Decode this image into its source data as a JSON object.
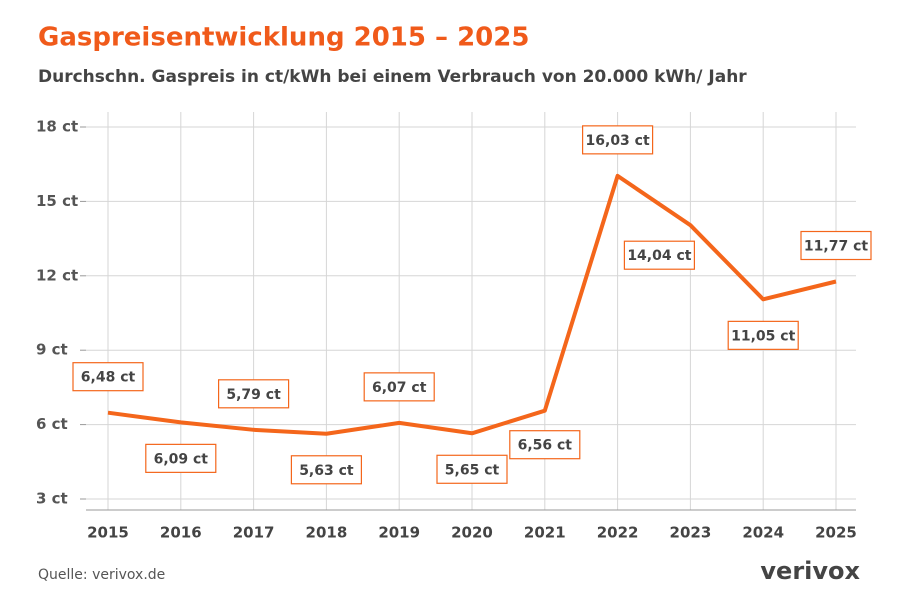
{
  "chart_data": {
    "type": "line",
    "title": "Gaspreisentwicklung 2015 – 2025",
    "subtitle": "Durchschn. Gaspreis in ct/kWh bei einem Verbrauch von 20.000 kWh/ Jahr",
    "categories": [
      "2015",
      "2016",
      "2017",
      "2018",
      "2019",
      "2020",
      "2021",
      "2022",
      "2023",
      "2024",
      "2025"
    ],
    "series": [
      {
        "name": "Gaspreis",
        "color": "#f4661b",
        "values": [
          6.48,
          6.09,
          5.79,
          5.63,
          6.07,
          5.65,
          6.56,
          16.03,
          14.04,
          11.05,
          11.77
        ],
        "value_labels": [
          "6,48 ct",
          "6,09 ct",
          "5,79 ct",
          "5,63 ct",
          "6,07 ct",
          "5,65 ct",
          "6,56 ct",
          "16,03 ct",
          "14,04 ct",
          "11,05 ct",
          "11,77 ct"
        ]
      }
    ],
    "ylim": [
      3,
      18
    ],
    "yticks": [
      {
        "value": 3,
        "label": "3 ct"
      },
      {
        "value": 6,
        "label": "6 ct"
      },
      {
        "value": 9,
        "label": "9 ct"
      },
      {
        "value": 12,
        "label": "12 ct"
      },
      {
        "value": 15,
        "label": "15 ct"
      },
      {
        "value": 18,
        "label": "18 ct"
      }
    ],
    "grid": true,
    "source": "Quelle: verivox.de",
    "logo": "verivox"
  }
}
